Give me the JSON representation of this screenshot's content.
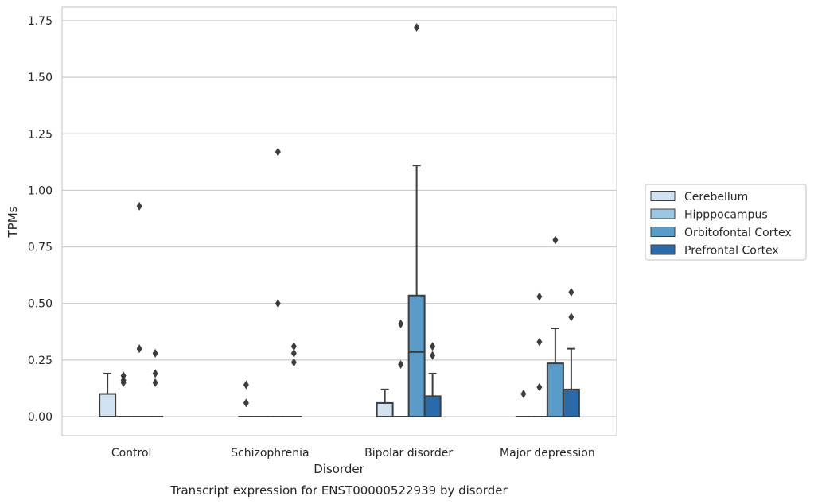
{
  "chart_data": {
    "type": "box",
    "xlabel": "Disorder",
    "ylabel": "TPMs",
    "caption": "Transcript expression for ENST00000522939 by disorder",
    "ylim": [
      -0.08,
      1.81
    ],
    "yticks": [
      "0.00",
      "0.25",
      "0.50",
      "0.75",
      "1.00",
      "1.25",
      "1.50",
      "1.75"
    ],
    "grid": true,
    "legend_position": "right",
    "categories": [
      "Control",
      "Schizophrenia",
      "Bipolar disorder",
      "Major depression"
    ],
    "series": [
      {
        "name": "Cerebellum",
        "color": "#d1e2f2",
        "boxes": [
          {
            "q1": 0.0,
            "median": 0.0,
            "q3": 0.1,
            "whisker_low": 0.0,
            "whisker_high": 0.19,
            "outliers": []
          },
          {
            "q1": 0.0,
            "median": 0.0,
            "q3": 0.0,
            "whisker_low": 0.0,
            "whisker_high": 0.0,
            "outliers": [
              0.14,
              0.06
            ]
          },
          {
            "q1": 0.0,
            "median": 0.0,
            "q3": 0.06,
            "whisker_low": 0.0,
            "whisker_high": 0.12,
            "outliers": []
          },
          {
            "q1": 0.0,
            "median": 0.0,
            "q3": 0.0,
            "whisker_low": 0.0,
            "whisker_high": 0.0,
            "outliers": [
              0.1
            ]
          }
        ]
      },
      {
        "name": "Hipppocampus",
        "color": "#9dc6e0",
        "boxes": [
          {
            "q1": 0.0,
            "median": 0.0,
            "q3": 0.0,
            "whisker_low": 0.0,
            "whisker_high": 0.0,
            "outliers": [
              0.18,
              0.16,
              0.15
            ]
          },
          {
            "q1": 0.0,
            "median": 0.0,
            "q3": 0.0,
            "whisker_low": 0.0,
            "whisker_high": 0.0,
            "outliers": []
          },
          {
            "q1": 0.0,
            "median": 0.0,
            "q3": 0.0,
            "whisker_low": 0.0,
            "whisker_high": 0.0,
            "outliers": [
              0.41,
              0.23
            ]
          },
          {
            "q1": 0.0,
            "median": 0.0,
            "q3": 0.0,
            "whisker_low": 0.0,
            "whisker_high": 0.0,
            "outliers": [
              0.53,
              0.33,
              0.13
            ]
          }
        ]
      },
      {
        "name": "Orbitofontal Cortex",
        "color": "#5a9bc8",
        "boxes": [
          {
            "q1": 0.0,
            "median": 0.0,
            "q3": 0.0,
            "whisker_low": 0.0,
            "whisker_high": 0.0,
            "outliers": [
              0.93,
              0.3
            ]
          },
          {
            "q1": 0.0,
            "median": 0.0,
            "q3": 0.0,
            "whisker_low": 0.0,
            "whisker_high": 0.0,
            "outliers": [
              1.17,
              0.5
            ]
          },
          {
            "q1": 0.0,
            "median": 0.285,
            "q3": 0.535,
            "whisker_low": 0.0,
            "whisker_high": 1.11,
            "outliers": [
              1.72
            ]
          },
          {
            "q1": 0.0,
            "median": 0.0,
            "q3": 0.235,
            "whisker_low": 0.0,
            "whisker_high": 0.39,
            "outliers": [
              0.78
            ]
          }
        ]
      },
      {
        "name": "Prefrontal Cortex",
        "color": "#2b6aa8",
        "boxes": [
          {
            "q1": 0.0,
            "median": 0.0,
            "q3": 0.0,
            "whisker_low": 0.0,
            "whisker_high": 0.0,
            "outliers": [
              0.28,
              0.19,
              0.15
            ]
          },
          {
            "q1": 0.0,
            "median": 0.0,
            "q3": 0.0,
            "whisker_low": 0.0,
            "whisker_high": 0.0,
            "outliers": [
              0.31,
              0.28,
              0.24
            ]
          },
          {
            "q1": 0.0,
            "median": 0.0,
            "q3": 0.09,
            "whisker_low": 0.0,
            "whisker_high": 0.19,
            "outliers": [
              0.31,
              0.27
            ]
          },
          {
            "q1": 0.0,
            "median": 0.0,
            "q3": 0.12,
            "whisker_low": 0.0,
            "whisker_high": 0.3,
            "outliers": [
              0.55,
              0.44
            ]
          }
        ]
      }
    ]
  }
}
